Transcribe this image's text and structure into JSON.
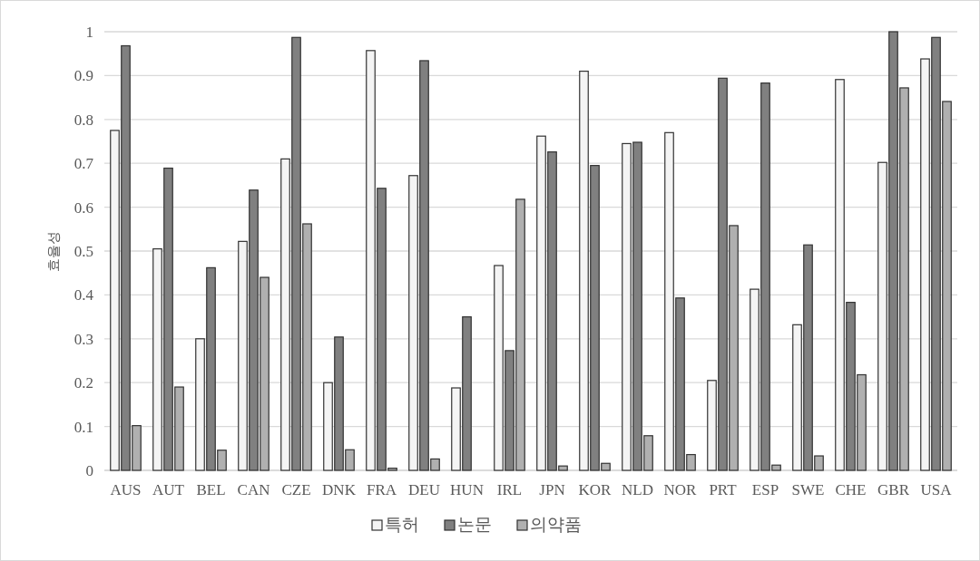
{
  "chart_data": {
    "type": "bar",
    "ylabel": "효율성",
    "categories": [
      "AUS",
      "AUT",
      "BEL",
      "CAN",
      "CZE",
      "DNK",
      "FRA",
      "DEU",
      "HUN",
      "IRL",
      "JPN",
      "KOR",
      "NLD",
      "NOR",
      "PRT",
      "ESP",
      "SWE",
      "CHE",
      "GBR",
      "USA"
    ],
    "series": [
      {
        "name": "특허",
        "color": "#f4f4f4",
        "values": [
          0.775,
          0.505,
          0.3,
          0.522,
          0.71,
          0.2,
          0.957,
          0.672,
          0.188,
          0.467,
          0.762,
          0.91,
          0.745,
          0.77,
          0.205,
          0.413,
          0.332,
          0.891,
          0.702,
          0.938
        ]
      },
      {
        "name": "논문",
        "color": "#808080",
        "values": [
          0.968,
          0.689,
          0.462,
          0.639,
          0.987,
          0.304,
          0.643,
          0.934,
          0.35,
          0.273,
          0.726,
          0.695,
          0.748,
          0.393,
          0.894,
          0.883,
          0.514,
          0.383,
          1.0,
          0.987
        ]
      },
      {
        "name": "의약품",
        "color": "#b0b0b0",
        "values": [
          0.102,
          0.19,
          0.046,
          0.44,
          0.562,
          0.047,
          0.005,
          0.026,
          null,
          0.618,
          0.01,
          0.016,
          0.079,
          0.036,
          0.558,
          0.012,
          0.033,
          0.218,
          0.872,
          0.841
        ]
      }
    ],
    "ylim": [
      0,
      1
    ],
    "yticks": [
      0,
      0.1,
      0.2,
      0.3,
      0.4,
      0.5,
      0.6,
      0.7,
      0.8,
      0.9,
      1
    ],
    "grid": "y",
    "legend": "bottom"
  }
}
